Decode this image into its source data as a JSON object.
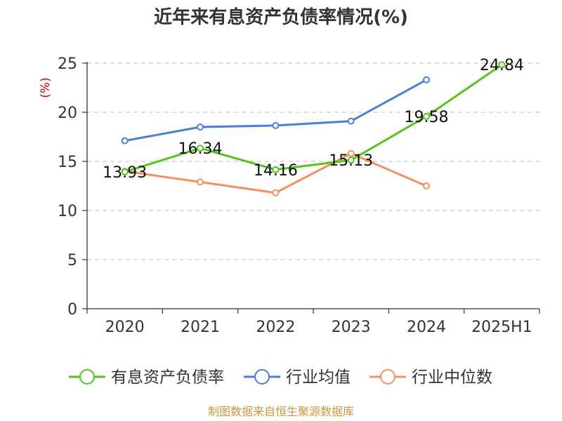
{
  "chart_data": {
    "type": "line",
    "title": "近年来有息资产负债率情况(%)",
    "ylabel": "(%)",
    "categories": [
      "2020",
      "2021",
      "2022",
      "2023",
      "2024",
      "2025H1"
    ],
    "ylim": [
      0,
      25
    ],
    "yticks": [
      "0",
      "5",
      "10",
      "15",
      "20",
      "25"
    ],
    "grid": true,
    "legend_position": "bottom",
    "series": [
      {
        "name": "有息资产负债率",
        "color": "#52c41a",
        "values": [
          13.93,
          16.34,
          14.16,
          15.13,
          19.58,
          24.84
        ],
        "labels": [
          "13.93",
          "16.34",
          "14.16",
          "15.13",
          "19.58",
          "24.84"
        ]
      },
      {
        "name": "行业均值",
        "color": "#4a7fd9",
        "values": [
          17.1,
          18.5,
          18.65,
          19.1,
          23.3,
          null
        ]
      },
      {
        "name": "行业中位数",
        "color": "#f4905e",
        "values": [
          14.0,
          12.9,
          11.8,
          15.8,
          12.5,
          null
        ]
      }
    ]
  },
  "source_text": "制图数据来自恒生聚源数据库",
  "colors": {
    "ylabel": "#cc0000",
    "source": "#c8963c",
    "grid": "#bbbbbb",
    "axis": "#333333"
  }
}
